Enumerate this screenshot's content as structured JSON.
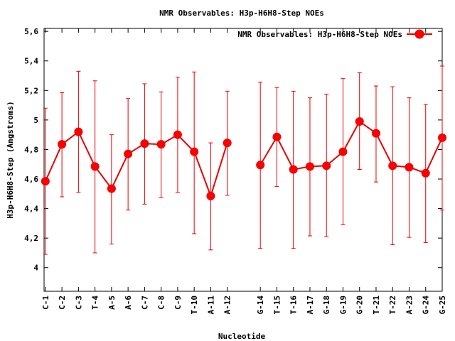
{
  "chart_data": {
    "type": "line",
    "title": "NMR Observables: H3p-H6H8-Step NOEs",
    "xlabel": "Nucleotide",
    "ylabel": "H3p-H6H8-Step (Angstroms)",
    "ylim": [
      3.84,
      5.62
    ],
    "y_ticks": [
      "4",
      "4,2",
      "4,4",
      "4,6",
      "4,8",
      "5",
      "5,2",
      "5,4",
      "5,6"
    ],
    "grid": false,
    "legend": {
      "placement": "top-right",
      "label": "NMR Observables: H3p-H6H8-Step NOEs"
    },
    "color": "#e60000",
    "series": [
      {
        "name": "NMR Observables: H3p-H6H8-Step NOEs",
        "points": [
          {
            "x": 1,
            "label": "C-1",
            "y": 4.585,
            "ylow": 4.09,
            "yhigh": 5.08
          },
          {
            "x": 2,
            "label": "C-2",
            "y": 4.835,
            "ylow": 4.48,
            "yhigh": 5.185
          },
          {
            "x": 3,
            "label": "C-3",
            "y": 4.92,
            "ylow": 4.51,
            "yhigh": 5.33
          },
          {
            "x": 4,
            "label": "T-4",
            "y": 4.685,
            "ylow": 4.1,
            "yhigh": 5.265
          },
          {
            "x": 5,
            "label": "A-5",
            "y": 4.535,
            "ylow": 4.16,
            "yhigh": 4.9
          },
          {
            "x": 6,
            "label": "A-6",
            "y": 4.77,
            "ylow": 4.39,
            "yhigh": 5.145
          },
          {
            "x": 7,
            "label": "C-7",
            "y": 4.84,
            "ylow": 4.43,
            "yhigh": 5.245
          },
          {
            "x": 8,
            "label": "C-8",
            "y": 4.835,
            "ylow": 4.475,
            "yhigh": 5.19
          },
          {
            "x": 9,
            "label": "C-9",
            "y": 4.9,
            "ylow": 4.51,
            "yhigh": 5.29
          },
          {
            "x": 10,
            "label": "T-10",
            "y": 4.785,
            "ylow": 4.23,
            "yhigh": 5.325
          },
          {
            "x": 11,
            "label": "A-11",
            "y": 4.485,
            "ylow": 4.12,
            "yhigh": 4.845
          },
          {
            "x": 12,
            "label": "A-12",
            "y": 4.845,
            "ylow": 4.49,
            "yhigh": 5.195
          },
          {
            "x": 14,
            "label": "G-14",
            "y": 4.695,
            "ylow": 4.13,
            "yhigh": 5.255
          },
          {
            "x": 15,
            "label": "T-15",
            "y": 4.885,
            "ylow": 4.55,
            "yhigh": 5.22
          },
          {
            "x": 16,
            "label": "T-16",
            "y": 4.665,
            "ylow": 4.13,
            "yhigh": 5.195
          },
          {
            "x": 17,
            "label": "A-17",
            "y": 4.685,
            "ylow": 4.215,
            "yhigh": 5.15
          },
          {
            "x": 18,
            "label": "G-18",
            "y": 4.69,
            "ylow": 4.21,
            "yhigh": 5.175
          },
          {
            "x": 19,
            "label": "G-19",
            "y": 4.785,
            "ylow": 4.29,
            "yhigh": 5.28
          },
          {
            "x": 20,
            "label": "G-20",
            "y": 4.99,
            "ylow": 4.665,
            "yhigh": 5.32
          },
          {
            "x": 21,
            "label": "T-21",
            "y": 4.91,
            "ylow": 4.58,
            "yhigh": 5.23
          },
          {
            "x": 22,
            "label": "T-22",
            "y": 4.69,
            "ylow": 4.155,
            "yhigh": 5.225
          },
          {
            "x": 23,
            "label": "A-23",
            "y": 4.68,
            "ylow": 4.205,
            "yhigh": 5.15
          },
          {
            "x": 24,
            "label": "G-24",
            "y": 4.64,
            "ylow": 4.17,
            "yhigh": 5.105
          },
          {
            "x": 25,
            "label": "G-25",
            "y": 4.88,
            "ylow": 4.39,
            "yhigh": 5.365
          }
        ],
        "segments": [
          [
            1,
            12
          ],
          [
            14,
            25
          ]
        ]
      }
    ]
  }
}
